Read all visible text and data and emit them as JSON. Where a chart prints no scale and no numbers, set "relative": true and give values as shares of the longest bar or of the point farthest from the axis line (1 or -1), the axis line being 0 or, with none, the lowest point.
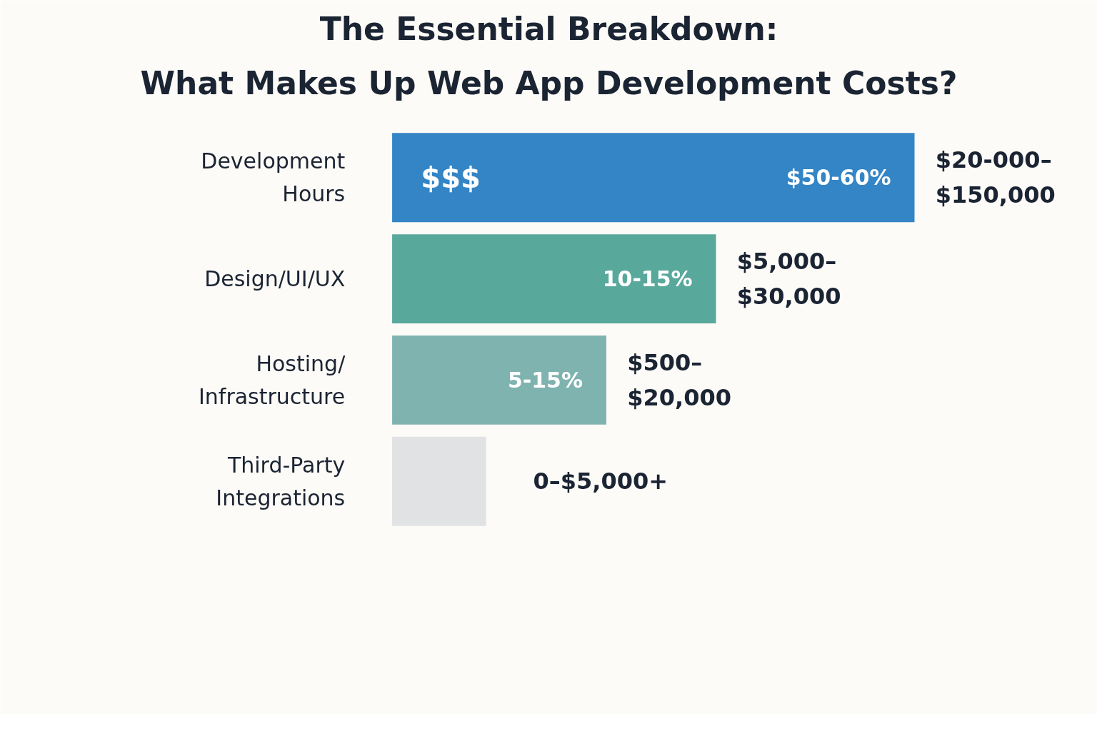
{
  "chart_data": {
    "type": "bar",
    "orientation": "horizontal",
    "relative": true,
    "title": "The Essential Breakdown:\nWhat Makes Up Web App Development Costs?",
    "categories": [
      "Development\nHours",
      "Design/UI/UX",
      "Hosting/\nInfrastructure",
      "Third-Party\nIntegrations"
    ],
    "values": [
      1,
      0.62,
      0.41,
      0.18
    ],
    "colors": [
      "#3385c6",
      "#59a89c",
      "#7fb3b0",
      "#e0e2e4"
    ],
    "annotations": [
      {
        "text": "$$$",
        "x": 0,
        "y": "Development\nHours"
      },
      {
        "text": "$50-60%",
        "x": 1,
        "y": "Development\nHours"
      },
      {
        "text": "$20-000–\n$150,000",
        "x": 1,
        "y": "Development\nHours"
      },
      {
        "text": "10-15%",
        "x": 0.62,
        "y": "Design/UI/UX"
      },
      {
        "text": "$5,000–\n$30,000",
        "x": 0.62,
        "y": "Design/UI/UX"
      },
      {
        "text": "5-15%",
        "x": 0.41,
        "y": "Hosting/\nInfrastructure"
      },
      {
        "text": "$500–\n$20,000",
        "x": 0.41,
        "y": "Hosting/\nInfrastructure"
      },
      {
        "text": "0–$5,000+",
        "x": 0.18,
        "y": "Third-Party\nIntegrations"
      }
    ],
    "grid": false
  }
}
